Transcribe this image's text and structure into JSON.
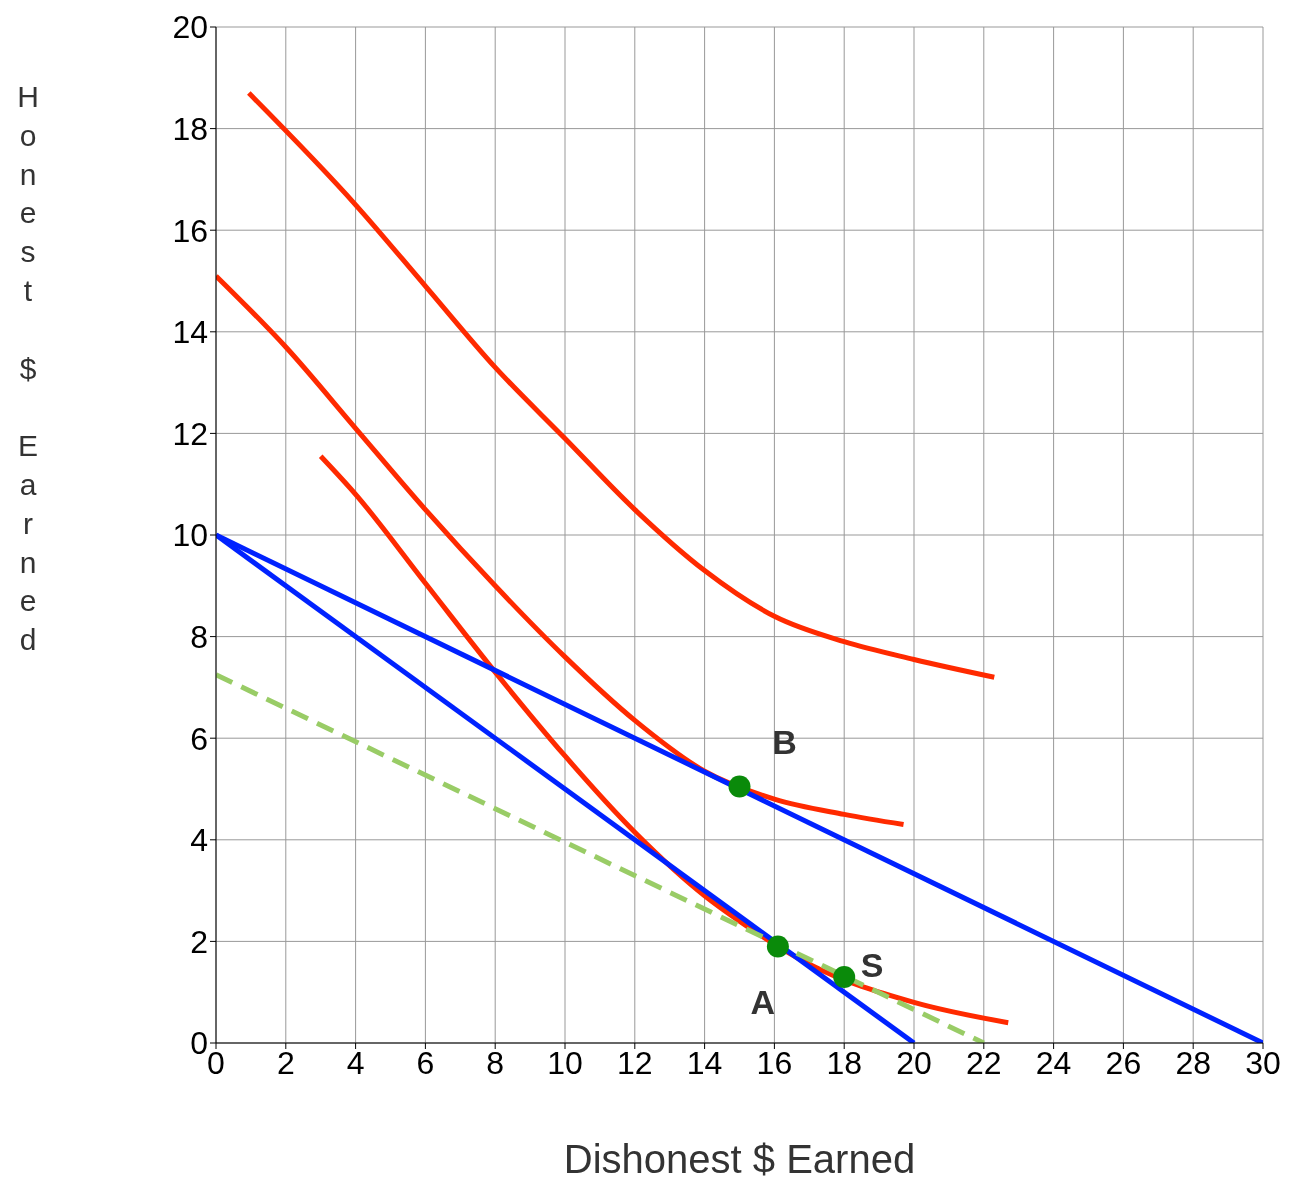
{
  "chart_data": {
    "type": "line",
    "xlabel": "Dishonest $ Earned",
    "ylabel": "Honest $ Earned",
    "xlim": [
      0,
      30
    ],
    "ylim": [
      0,
      20
    ],
    "xticks": [
      0,
      2,
      4,
      6,
      8,
      10,
      12,
      14,
      16,
      18,
      20,
      22,
      24,
      26,
      28,
      30
    ],
    "yticks": [
      0,
      2,
      4,
      6,
      8,
      10,
      12,
      14,
      16,
      18,
      20
    ],
    "grid": true,
    "series": [
      {
        "color": "#ff2a00",
        "line_style": "solid",
        "marker": "none",
        "x": [
          0.94,
          4,
          6,
          8,
          10,
          12,
          14,
          16,
          18,
          20,
          22.3
        ],
        "values": [
          18.7,
          16.5,
          14.9,
          13.3,
          11.9,
          10.5,
          9.3,
          8.4,
          7.9,
          7.55,
          7.2
        ]
      },
      {
        "color": "#ff2a00",
        "line_style": "solid",
        "marker": "none",
        "x": [
          0,
          2,
          4,
          6,
          8,
          10,
          12,
          14,
          16,
          18,
          19.7
        ],
        "values": [
          15.1,
          13.7,
          12.1,
          10.5,
          9,
          7.6,
          6.35,
          5.35,
          4.8,
          4.5,
          4.3
        ]
      },
      {
        "color": "#ff2a00",
        "line_style": "solid",
        "marker": "none",
        "x": [
          3,
          4,
          6,
          8,
          10,
          12,
          14,
          15,
          17,
          20,
          22.7
        ],
        "values": [
          11.55,
          10.8,
          9.05,
          7.3,
          5.65,
          4.15,
          2.9,
          2.4,
          1.55,
          0.8,
          0.4
        ]
      },
      {
        "color": "#0022ff",
        "line_style": "solid",
        "marker": "none",
        "x": [
          0,
          20
        ],
        "values": [
          10,
          0
        ]
      },
      {
        "color": "#0022ff",
        "line_style": "solid",
        "marker": "none",
        "x": [
          0,
          30
        ],
        "values": [
          10,
          0
        ]
      },
      {
        "color": "#99cc66",
        "line_style": "dashed",
        "marker": "none",
        "x": [
          0,
          22
        ],
        "values": [
          7.25,
          0
        ]
      },
      {
        "type": "scatter",
        "color": "#0a8a0a",
        "marker": "circle",
        "x": [
          15,
          16.1,
          18
        ],
        "values": [
          5.05,
          1.9,
          1.3
        ]
      }
    ],
    "annotations": [
      {
        "text": "B",
        "x": 15,
        "y": 5.05
      },
      {
        "text": "A",
        "x": 16.1,
        "y": 1.9
      },
      {
        "text": "S",
        "x": 18,
        "y": 1.3
      }
    ]
  }
}
